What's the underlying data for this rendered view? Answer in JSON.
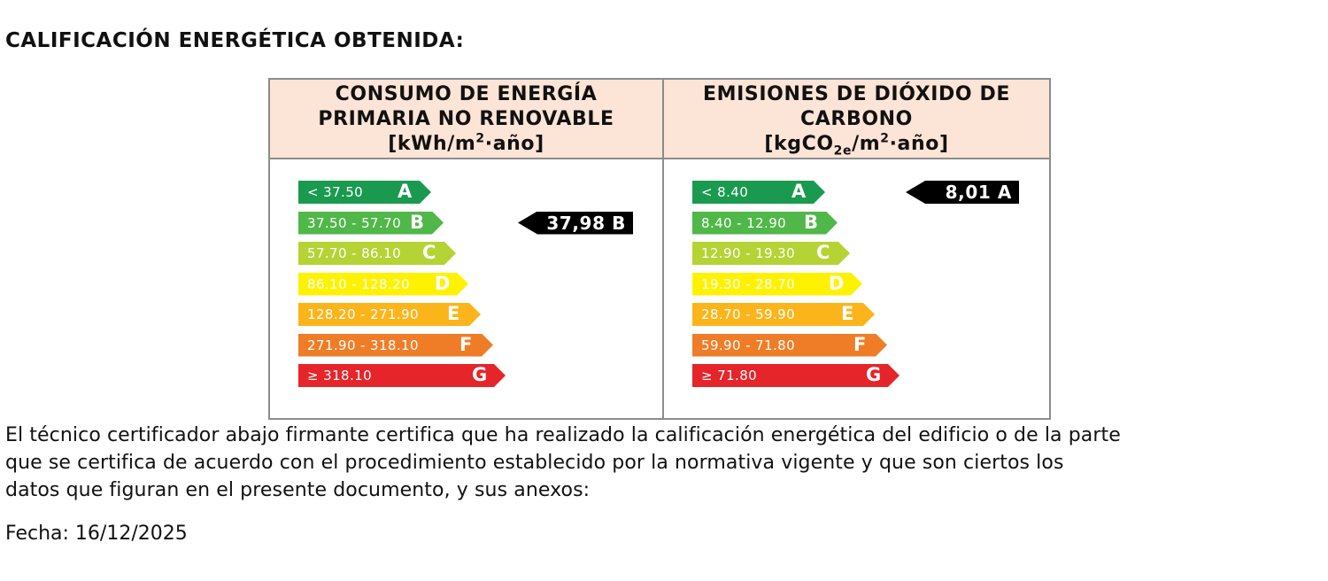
{
  "title": "CALIFICACIÓN ENERGÉTICA OBTENIDA:",
  "consumo": {
    "heading_line1": "CONSUMO DE ENERGÍA",
    "heading_line2": "PRIMARIA NO RENOVABLE",
    "unit_prefix": "[kWh/m",
    "unit_sup": "2",
    "unit_suffix": "·año]",
    "bars": [
      {
        "range": "< 37.50",
        "letter": "A",
        "color": "#1a9a4e"
      },
      {
        "range": "37.50 - 57.70",
        "letter": "B",
        "color": "#4fb848"
      },
      {
        "range": "57.70 - 86.10",
        "letter": "C",
        "color": "#b5d334"
      },
      {
        "range": "86.10 - 128.20",
        "letter": "D",
        "color": "#fff200"
      },
      {
        "range": "128.20 - 271.90",
        "letter": "E",
        "color": "#fbb51b"
      },
      {
        "range": "271.90 - 318.10",
        "letter": "F",
        "color": "#ef7d27"
      },
      {
        "range": "≥ 318.10",
        "letter": "G",
        "color": "#e5252a"
      }
    ],
    "rating_value": "37,98 B",
    "rating_index": 1
  },
  "emisiones": {
    "heading_line1": "EMISIONES DE DIÓXIDO DE",
    "heading_line2": "CARBONO",
    "unit_prefix": "[kgCO",
    "unit_sub": "2e",
    "unit_mid": "/m",
    "unit_sup": "2",
    "unit_suffix": "·año]",
    "bars": [
      {
        "range": "< 8.40",
        "letter": "A",
        "color": "#1a9a4e"
      },
      {
        "range": "8.40 - 12.90",
        "letter": "B",
        "color": "#4fb848"
      },
      {
        "range": "12.90 - 19.30",
        "letter": "C",
        "color": "#b5d334"
      },
      {
        "range": "19.30 - 28.70",
        "letter": "D",
        "color": "#fff200"
      },
      {
        "range": "28.70 - 59.90",
        "letter": "E",
        "color": "#fbb51b"
      },
      {
        "range": "59.90 - 71.80",
        "letter": "F",
        "color": "#ef7d27"
      },
      {
        "range": "≥ 71.80",
        "letter": "G",
        "color": "#e5252a"
      }
    ],
    "rating_value": "8,01 A",
    "rating_index": 0
  },
  "certification_text": [
    "El técnico certificador abajo firmante certifica que ha realizado la calificación energética del edificio o de la parte",
    "que se certifica de acuerdo con el procedimiento establecido por la normativa vigente y que son ciertos los",
    "datos que figuran en el presente documento, y sus anexos:"
  ],
  "date_line": "Fecha: 16/12/2025"
}
